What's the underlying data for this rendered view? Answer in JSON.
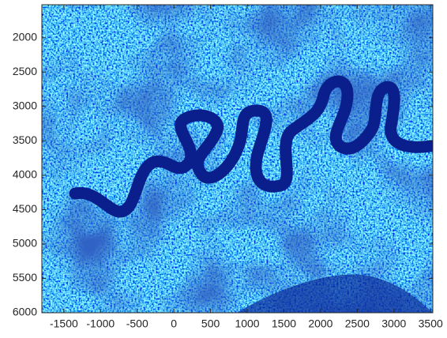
{
  "chart_data": {
    "type": "image",
    "xlim": [
      -1800,
      3530
    ],
    "ylim": [
      1520,
      6000
    ],
    "y_reversed": true,
    "xticks": [
      -1500,
      -1000,
      -500,
      0,
      500,
      1000,
      1500,
      2000,
      2500,
      3000,
      3500
    ],
    "yticks": [
      2000,
      2500,
      3000,
      3500,
      4000,
      4500,
      5000,
      5500,
      6000
    ]
  }
}
